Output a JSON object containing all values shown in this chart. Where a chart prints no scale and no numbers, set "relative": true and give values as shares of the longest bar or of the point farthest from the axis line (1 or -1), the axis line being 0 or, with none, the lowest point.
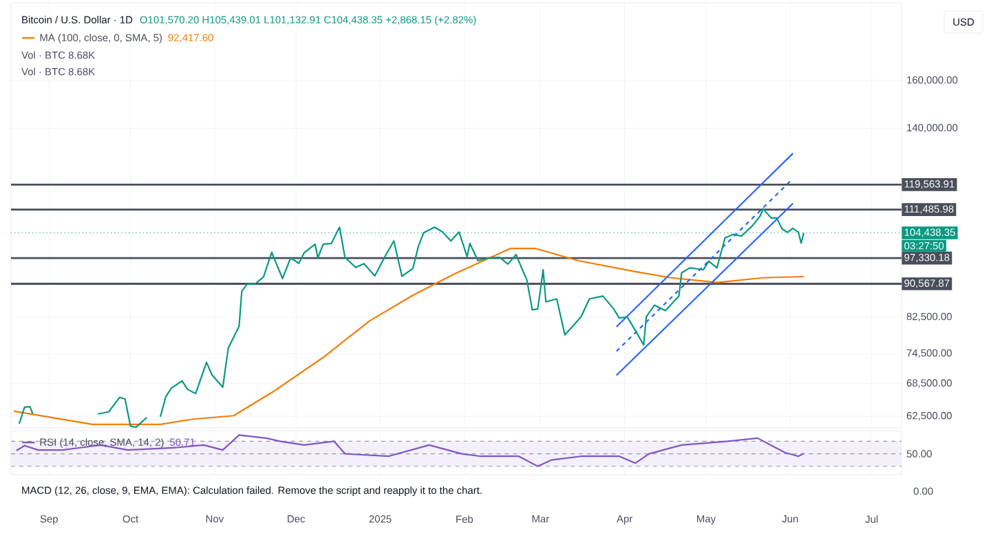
{
  "chart_data": [
    {
      "type": "line",
      "title": "Bitcoin / U.S. Dollar · 1D",
      "log": true,
      "grid": true,
      "tick_labels": "y",
      "xlim": [
        "2024-08-18",
        "2025-07-12"
      ],
      "ylim": [
        60500,
        199000
      ],
      "xticks": [
        {
          "value": "2024-09-01",
          "label": null
        },
        {
          "value": "2024-10-01",
          "label": null
        },
        {
          "value": "2024-11-01",
          "label": null
        },
        {
          "value": "2024-12-01",
          "label": null
        },
        {
          "value": "2025-01-01",
          "label": null
        },
        {
          "value": "2025-02-01",
          "label": null
        },
        {
          "value": "2025-03-01",
          "label": null
        },
        {
          "value": "2025-04-01",
          "label": null
        },
        {
          "value": "2025-05-01",
          "label": null
        },
        {
          "value": "2025-06-01",
          "label": null
        },
        {
          "value": "2025-07-01",
          "label": null
        }
      ],
      "yticks": [
        {
          "value": 62500,
          "label": "62,500.00"
        },
        {
          "value": 68500,
          "label": "68,500.00"
        },
        {
          "value": 74500,
          "label": "74,500.00"
        },
        {
          "value": 82500,
          "label": "82,500.00"
        },
        {
          "value": 140000,
          "label": "140,000.00"
        },
        {
          "value": 160000,
          "label": "160,000.00"
        }
      ],
      "series": [
        {
          "color": "#089981",
          "x": [
            "2024-08-21",
            "2024-08-23",
            "2024-08-25",
            "2024-08-26",
            "2024-08-27",
            "2024-09-19",
            "2024-09-23",
            "2024-09-27",
            "2024-09-29",
            "2024-10-01",
            "2024-10-03",
            "2024-10-07",
            "2024-10-10",
            "2024-10-12",
            "2024-10-14",
            "2024-10-16",
            "2024-10-20",
            "2024-10-22",
            "2024-10-25",
            "2024-10-29",
            "2024-10-31",
            "2024-11-04",
            "2024-11-06",
            "2024-11-10",
            "2024-11-11",
            "2024-11-13",
            "2024-11-16",
            "2024-11-19",
            "2024-11-22",
            "2024-11-26",
            "2024-11-29",
            "2024-12-02",
            "2024-12-04",
            "2024-12-08",
            "2024-12-09",
            "2024-12-11",
            "2024-12-14",
            "2024-12-17",
            "2024-12-19",
            "2024-12-23",
            "2024-12-26",
            "2024-12-30",
            "2025-01-03",
            "2025-01-06",
            "2025-01-09",
            "2025-01-13",
            "2025-01-15",
            "2025-01-17",
            "2025-01-21",
            "2025-01-24",
            "2025-01-27",
            "2025-01-30",
            "2025-02-02",
            "2025-02-03",
            "2025-02-06",
            "2025-02-10",
            "2025-02-14",
            "2025-02-17",
            "2025-02-20",
            "2025-02-24",
            "2025-02-26",
            "2025-02-28",
            "2025-03-02",
            "2025-03-03",
            "2025-03-07",
            "2025-03-10",
            "2025-03-13",
            "2025-03-16",
            "2025-03-19",
            "2025-03-24",
            "2025-03-28",
            "2025-03-30",
            "2025-04-02",
            "2025-04-06",
            "2025-04-08",
            "2025-04-09",
            "2025-04-12",
            "2025-04-16",
            "2025-04-21",
            "2025-04-22",
            "2025-04-25",
            "2025-04-30",
            "2025-05-02",
            "2025-05-05",
            "2025-05-08",
            "2025-05-11",
            "2025-05-14",
            "2025-05-18",
            "2025-05-21",
            "2025-05-22",
            "2025-05-25",
            "2025-05-27",
            "2025-05-29",
            "2025-05-31",
            "2025-06-02",
            "2025-06-04",
            "2025-06-05",
            "2025-06-06"
          ],
          "values": [
            61200,
            64100,
            64200,
            62900,
            null,
            62900,
            63300,
            65900,
            65600,
            60800,
            60600,
            62300,
            null,
            62400,
            66000,
            67600,
            69000,
            67400,
            66600,
            72700,
            70200,
            67800,
            75600,
            80400,
            88700,
            90500,
            90600,
            92300,
            98900,
            91900,
            97400,
            95900,
            98800,
            101200,
            97400,
            101200,
            101400,
            106100,
            97500,
            94800,
            95800,
            92600,
            98100,
            102100,
            92500,
            94500,
            100500,
            104500,
            106100,
            104700,
            102100,
            104700,
            97700,
            101400,
            96600,
            97400,
            97500,
            95700,
            98300,
            91500,
            84200,
            84400,
            94200,
            86100,
            86800,
            78500,
            80500,
            82600,
            86800,
            87500,
            84400,
            82300,
            82500,
            78400,
            76300,
            82600,
            85300,
            84000,
            87500,
            93400,
            94700,
            94200,
            96500,
            94700,
            103000,
            104000,
            103500,
            106500,
            109600,
            111700,
            108900,
            108900,
            105600,
            104600,
            105800,
            104600,
            101500,
            104438.35
          ]
        },
        {
          "name": "MA (100, close, 0, SMA, 5)",
          "color": "#f57c00",
          "x": [
            "2024-08-19",
            "2024-09-17",
            "2024-10-12",
            "2024-10-24",
            "2024-11-08",
            "2024-11-23",
            "2024-12-11",
            "2024-12-28",
            "2025-01-13",
            "2025-01-28",
            "2025-02-18",
            "2025-02-27",
            "2025-03-15",
            "2025-04-05",
            "2025-04-18",
            "2025-05-05",
            "2025-05-22",
            "2025-06-06"
          ],
          "values": [
            63400,
            61100,
            61100,
            62000,
            62600,
            67100,
            73700,
            81600,
            87700,
            93000,
            100000,
            100000,
            96600,
            93700,
            92100,
            90900,
            92100,
            92417.6
          ]
        },
        {
          "color": "#2962ff",
          "line_style": "solid",
          "x": [
            "2025-03-29",
            "2025-06-02"
          ],
          "values": [
            80300,
            130500
          ]
        },
        {
          "color": "#2962ff",
          "line_style": "dashed",
          "x": [
            "2025-03-29",
            "2025-06-02"
          ],
          "values": [
            75000,
            121600
          ]
        },
        {
          "color": "#2962ff",
          "line_style": "solid",
          "x": [
            "2025-03-29",
            "2025-06-02"
          ],
          "values": [
            70100,
            113400
          ]
        }
      ],
      "ref_lines": [
        {
          "axis": "y",
          "value": 119563.91,
          "label": "119,563.91",
          "color": "#4a4e5a"
        },
        {
          "axis": "y",
          "value": 111485.98,
          "label": "111,485.98",
          "color": "#4a4e5a"
        },
        {
          "axis": "y",
          "value": 104438.35,
          "label": "104,438.35",
          "color": "#089981",
          "line_style": "dotted"
        },
        {
          "axis": "y",
          "value": 97330.18,
          "label": "97,330.18",
          "color": "#4a4e5a"
        },
        {
          "axis": "y",
          "value": 90567.87,
          "label": "90,567.87",
          "color": "#4a4e5a"
        }
      ],
      "annotations": [
        "O101,570.20 H105,439.01 L101,132.91 C104,438.35 +2,868.15 (+2.82%)",
        "92,417.60",
        "Vol · BTC 8.68K",
        "Vol · BTC 8.68K",
        "USD",
        "03:27:50"
      ]
    },
    {
      "type": "line",
      "grid": "x",
      "relative": true,
      "tick_labels": "x",
      "xlim": [
        "2024-08-18",
        "2025-07-12"
      ],
      "xticks": [
        {
          "value": "2024-09-01",
          "label": "Sep"
        },
        {
          "value": "2024-10-01",
          "label": "Oct"
        },
        {
          "value": "2024-11-01",
          "label": "Nov"
        },
        {
          "value": "2024-12-01",
          "label": "Dec"
        },
        {
          "value": "2025-01-01",
          "label": "2025"
        },
        {
          "value": "2025-02-01",
          "label": "Feb"
        },
        {
          "value": "2025-03-01",
          "label": "Mar"
        },
        {
          "value": "2025-04-01",
          "label": "Apr"
        },
        {
          "value": "2025-05-01",
          "label": "May"
        },
        {
          "value": "2025-06-01",
          "label": "Jun"
        },
        {
          "value": "2025-07-01",
          "label": "Jul"
        }
      ],
      "series": [
        {
          "name": "RSI (14, close, SMA, 14, 2)",
          "color": "#7e57c2",
          "x": [
            "2024-08-20",
            "2024-08-23",
            "2024-08-28",
            "2024-09-06",
            "2024-09-13",
            "2024-09-20",
            "2024-09-30",
            "2024-10-09",
            "2024-10-18",
            "2024-10-28",
            "2024-11-04",
            "2024-11-10",
            "2024-11-20",
            "2024-11-25",
            "2024-12-04",
            "2024-12-15",
            "2024-12-19",
            "2025-01-04",
            "2025-01-19",
            "2025-01-31",
            "2025-02-07",
            "2025-02-21",
            "2025-02-28",
            "2025-03-05",
            "2025-03-16",
            "2025-03-30",
            "2025-04-05",
            "2025-04-10",
            "2025-04-22",
            "2025-05-09",
            "2025-05-20",
            "2025-05-30",
            "2025-06-04",
            "2025-06-06"
          ],
          "values": [
            0.5,
            0.66,
            0.52,
            0.52,
            0.6,
            0.68,
            0.52,
            0.56,
            0.6,
            0.68,
            0.52,
            1,
            0.9,
            0.8,
            0.68,
            0.8,
            0.4,
            0.32,
            0.68,
            0.4,
            0.32,
            0.32,
            0,
            0.2,
            0.32,
            0.32,
            0.1,
            0.4,
            0.68,
            0.8,
            0.9,
            0.44,
            0.32,
            0.41
          ]
        }
      ],
      "bands": [
        {
          "axis": "y",
          "from": 0,
          "to": 0.8,
          "color": "#f3effb"
        }
      ],
      "ref_lines": [
        {
          "axis": "y",
          "value": 0.8,
          "color": "#9598a1",
          "line_style": "dashed"
        },
        {
          "axis": "y",
          "value": 0.4,
          "color": "#9598a1",
          "line_style": "dashed"
        },
        {
          "axis": "y",
          "value": 0,
          "color": "#9598a1",
          "line_style": "dashed"
        }
      ],
      "annotations": [
        "50.71",
        "MACD (12, 26, close, 9, EMA, EMA): Calculation failed. Remove the script and reapply it to the chart.",
        "0.00",
        "50.00"
      ]
    }
  ]
}
